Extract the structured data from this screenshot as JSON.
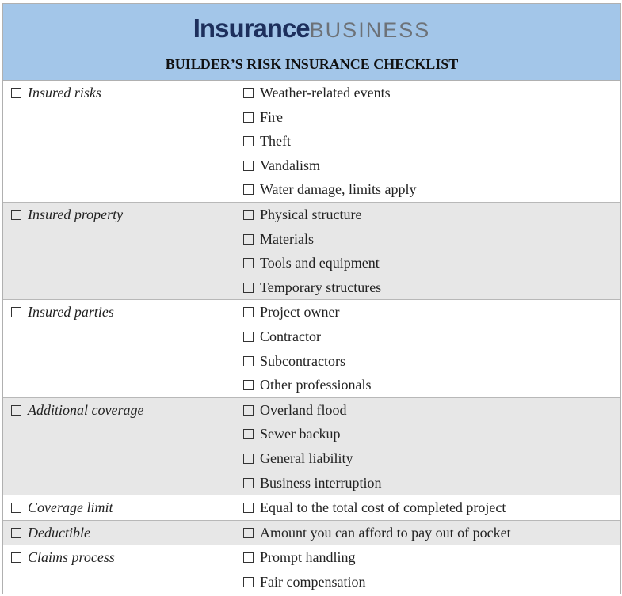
{
  "header": {
    "logo_bold": "Insurance",
    "logo_light": "BUSINESS",
    "title": "BUILDER’S RISK INSURANCE CHECKLIST"
  },
  "table": {
    "rows": [
      {
        "label": "Insured risks",
        "items": [
          "Weather-related events",
          "Fire",
          "Theft",
          "Vandalism",
          "Water damage, limits apply"
        ]
      },
      {
        "label": "Insured property",
        "items": [
          "Physical structure",
          "Materials",
          "Tools and equipment",
          "Temporary structures"
        ]
      },
      {
        "label": "Insured parties",
        "items": [
          "Project owner",
          "Contractor",
          "Subcontractors",
          "Other professionals"
        ]
      },
      {
        "label": "Additional coverage",
        "items": [
          "Overland flood",
          "Sewer backup",
          "General liability",
          "Business interruption"
        ]
      },
      {
        "label": "Coverage limit",
        "items": [
          "Equal to the total cost of completed project"
        ]
      },
      {
        "label": "Deductible",
        "items": [
          "Amount you can afford to pay out of pocket"
        ]
      },
      {
        "label": "Claims process",
        "items": [
          "Prompt handling",
          "Fair compensation"
        ]
      }
    ]
  }
}
